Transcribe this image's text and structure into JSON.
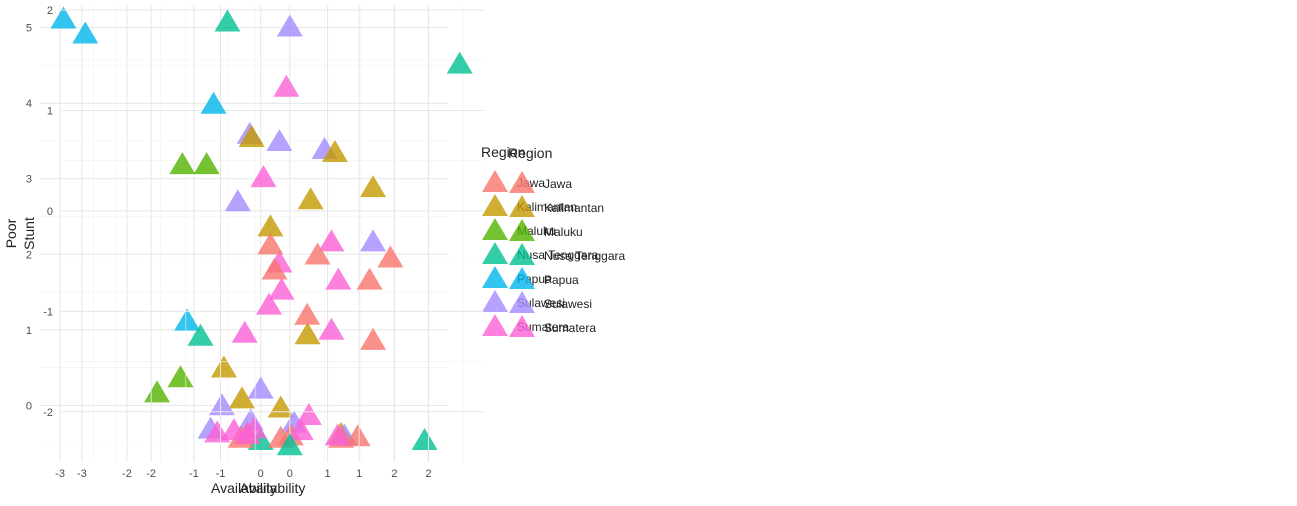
{
  "legend": {
    "title": "Region",
    "entries": [
      {
        "name": "Jawa",
        "color": "#F8766D"
      },
      {
        "name": "Kalimantan",
        "color": "#C49A00"
      },
      {
        "name": "Maluku",
        "color": "#53B400"
      },
      {
        "name": "Nusa Tenggara",
        "color": "#00C094"
      },
      {
        "name": "Papua",
        "color": "#00B6EB"
      },
      {
        "name": "Sulawesi",
        "color": "#A58AFF"
      },
      {
        "name": "Sumatera",
        "color": "#FB61D7"
      }
    ]
  },
  "chart_data": [
    {
      "type": "scatter",
      "marker": "triangle",
      "title": "",
      "xlabel": "Availability",
      "ylabel": "Poor",
      "xlim": [
        -3.3,
        2.8
      ],
      "ylim": [
        -0.75,
        5.3
      ],
      "xticks": [
        -3,
        -2,
        -1,
        0,
        1,
        2
      ],
      "yticks": [
        0,
        1,
        2,
        3,
        4,
        5
      ],
      "grid": true,
      "legend_position": "right",
      "points": [
        {
          "region": "Papua",
          "x": -2.95,
          "y": 5.1
        },
        {
          "region": "Papua",
          "x": -1.1,
          "y": 1.1
        },
        {
          "region": "Nusa Tenggara",
          "x": -0.9,
          "y": 0.9
        },
        {
          "region": "Nusa Tenggara",
          "x": 0.0,
          "y": -0.48
        },
        {
          "region": "Nusa Tenggara",
          "x": 2.45,
          "y": -0.48
        },
        {
          "region": "Maluku",
          "x": -1.55,
          "y": 0.15
        },
        {
          "region": "Maluku",
          "x": -1.2,
          "y": 0.35
        },
        {
          "region": "Kalimantan",
          "x": -0.55,
          "y": 0.48
        },
        {
          "region": "Kalimantan",
          "x": -0.28,
          "y": 0.07
        },
        {
          "region": "Kalimantan",
          "x": 0.3,
          "y": -0.05
        },
        {
          "region": "Kalimantan",
          "x": 0.7,
          "y": 0.92
        },
        {
          "region": "Kalimantan",
          "x": 1.2,
          "y": -0.4
        },
        {
          "region": "Sulawesi",
          "x": 0.0,
          "y": 0.2
        },
        {
          "region": "Sulawesi",
          "x": -0.58,
          "y": -0.02
        },
        {
          "region": "Sulawesi",
          "x": -0.75,
          "y": -0.33
        },
        {
          "region": "Sulawesi",
          "x": -0.15,
          "y": -0.22
        },
        {
          "region": "Sulawesi",
          "x": 0.5,
          "y": -0.25
        },
        {
          "region": "Sulawesi",
          "x": 1.25,
          "y": -0.42
        },
        {
          "region": "Jawa",
          "x": -0.3,
          "y": -0.45
        },
        {
          "region": "Jawa",
          "x": -0.2,
          "y": -0.4
        },
        {
          "region": "Jawa",
          "x": 0.3,
          "y": -0.45
        },
        {
          "region": "Jawa",
          "x": 0.45,
          "y": -0.42
        },
        {
          "region": "Jawa",
          "x": 1.2,
          "y": -0.45
        },
        {
          "region": "Jawa",
          "x": 1.45,
          "y": -0.43
        },
        {
          "region": "Sumatera",
          "x": -0.65,
          "y": -0.38
        },
        {
          "region": "Sumatera",
          "x": -0.4,
          "y": -0.35
        },
        {
          "region": "Sumatera",
          "x": -0.2,
          "y": -0.4
        },
        {
          "region": "Sumatera",
          "x": -0.1,
          "y": -0.33
        },
        {
          "region": "Sumatera",
          "x": 0.6,
          "y": -0.35
        },
        {
          "region": "Sumatera",
          "x": 0.72,
          "y": -0.15
        },
        {
          "region": "Sumatera",
          "x": 1.15,
          "y": -0.42
        }
      ]
    },
    {
      "type": "scatter",
      "marker": "triangle",
      "title": "",
      "xlabel": "Availability",
      "ylabel": "Stunt",
      "xlim": [
        -3.3,
        2.8
      ],
      "ylim": [
        -2.5,
        2.05
      ],
      "xticks": [
        -3,
        -2,
        -1,
        0,
        1,
        2
      ],
      "yticks": [
        -2,
        -1,
        0,
        1,
        2
      ],
      "grid": true,
      "legend_position": "right",
      "points": [
        {
          "region": "Papua",
          "x": -2.95,
          "y": 1.75
        },
        {
          "region": "Papua",
          "x": -1.1,
          "y": 1.05
        },
        {
          "region": "Nusa Tenggara",
          "x": -0.9,
          "y": 1.87
        },
        {
          "region": "Nusa Tenggara",
          "x": 2.45,
          "y": 1.45
        },
        {
          "region": "Nusa Tenggara",
          "x": 0.0,
          "y": -2.35
        },
        {
          "region": "Maluku",
          "x": -1.55,
          "y": 0.45
        },
        {
          "region": "Maluku",
          "x": -1.2,
          "y": 0.45
        },
        {
          "region": "Sulawesi",
          "x": 0.0,
          "y": 1.82
        },
        {
          "region": "Sulawesi",
          "x": -0.58,
          "y": 0.75
        },
        {
          "region": "Sulawesi",
          "x": -0.15,
          "y": 0.68
        },
        {
          "region": "Sulawesi",
          "x": 0.5,
          "y": 0.6
        },
        {
          "region": "Sulawesi",
          "x": -0.75,
          "y": 0.08
        },
        {
          "region": "Sulawesi",
          "x": 1.2,
          "y": -0.32
        },
        {
          "region": "Kalimantan",
          "x": -0.55,
          "y": 0.72
        },
        {
          "region": "Kalimantan",
          "x": 0.65,
          "y": 0.57
        },
        {
          "region": "Kalimantan",
          "x": 1.2,
          "y": 0.22
        },
        {
          "region": "Kalimantan",
          "x": 0.3,
          "y": 0.1
        },
        {
          "region": "Kalimantan",
          "x": -0.28,
          "y": -0.17
        },
        {
          "region": "Sumatera",
          "x": -0.05,
          "y": 1.22
        },
        {
          "region": "Sumatera",
          "x": -0.38,
          "y": 0.32
        },
        {
          "region": "Sumatera",
          "x": -0.15,
          "y": -0.53
        },
        {
          "region": "Sumatera",
          "x": 0.6,
          "y": -0.32
        },
        {
          "region": "Sumatera",
          "x": 0.7,
          "y": -0.7
        },
        {
          "region": "Sumatera",
          "x": -0.12,
          "y": -0.8
        },
        {
          "region": "Sumatera",
          "x": -0.3,
          "y": -0.95
        },
        {
          "region": "Sumatera",
          "x": 0.6,
          "y": -1.2
        },
        {
          "region": "Sumatera",
          "x": -0.65,
          "y": -1.23
        },
        {
          "region": "Jawa",
          "x": -0.28,
          "y": -0.35
        },
        {
          "region": "Jawa",
          "x": -0.22,
          "y": -0.6
        },
        {
          "region": "Jawa",
          "x": 0.4,
          "y": -0.45
        },
        {
          "region": "Jawa",
          "x": 1.45,
          "y": -0.48
        },
        {
          "region": "Jawa",
          "x": 1.15,
          "y": -0.7
        },
        {
          "region": "Jawa",
          "x": 0.25,
          "y": -1.05
        },
        {
          "region": "Jawa",
          "x": 1.2,
          "y": -1.3
        }
      ]
    }
  ]
}
